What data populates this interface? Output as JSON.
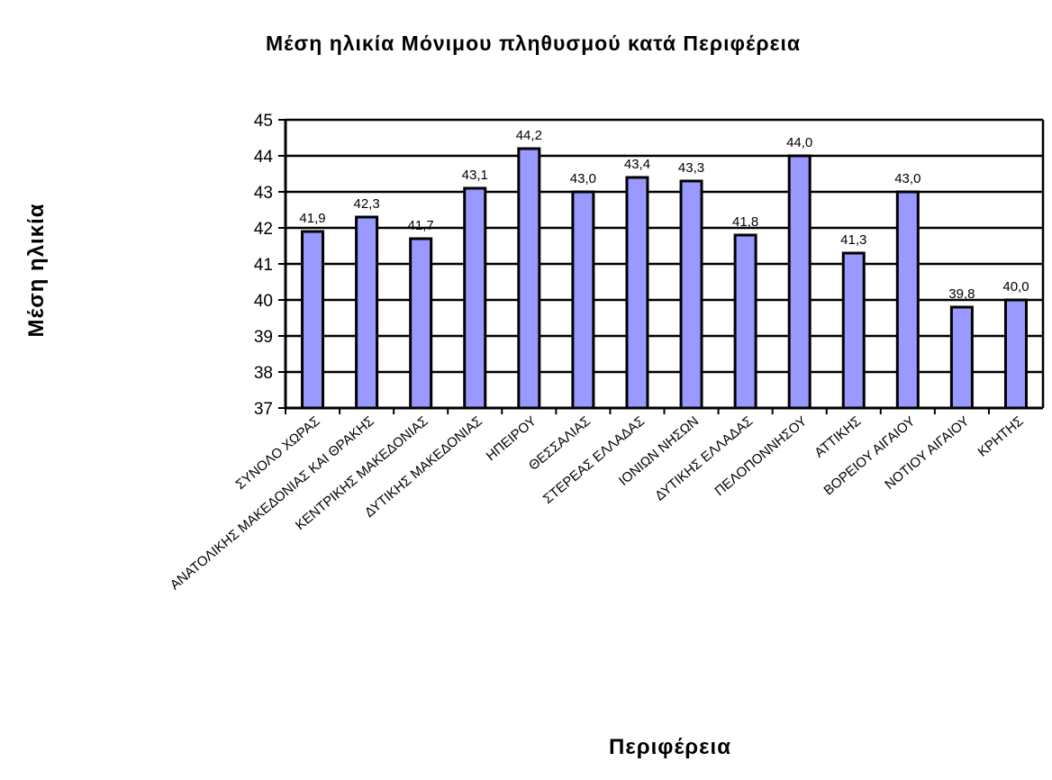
{
  "chart_data": {
    "type": "bar",
    "title": "Μέση ηλικία Μόνιμου  πληθυσμού κατά  Περιφέρεια",
    "xlabel": "Περιφέρεια",
    "ylabel": "Μέση ηλικία",
    "ylim": [
      37,
      45
    ],
    "yticks": [
      "37",
      "38",
      "39",
      "40",
      "41",
      "42",
      "43",
      "44",
      "45"
    ],
    "grid": true,
    "legend": "none",
    "bar_color": "#9999ff",
    "categories": [
      "ΣΥΝΟΛΟ ΧΩΡΑΣ",
      "ΑΝΑΤΟΛΙΚΗΣ ΜΑΚΕΔΟΝΙΑΣ ΚΑΙ ΘΡΑΚΗΣ",
      "ΚΕΝΤΡΙΚΗΣ ΜΑΚΕΔΟΝΙΑΣ",
      "ΔΥΤΙΚΗΣ ΜΑΚΕΔΟΝΙΑΣ",
      "ΗΠΕΙΡΟΥ",
      "ΘΕΣΣΑΛΙΑΣ",
      "ΣΤΕΡΕΑΣ ΕΛΛΑΔΑΣ",
      "ΙΟΝΙΩΝ ΝΗΣΩΝ",
      "ΔΥΤΙΚΗΣ ΕΛΛΑΔΑΣ",
      "ΠΕΛΟΠΟΝΝΗΣΟΥ",
      "ΑΤΤΙΚΗΣ",
      "ΒΟΡΕΙΟΥ ΑΙΓΑΙΟΥ",
      "ΝΟΤΙΟΥ ΑΙΓΑΙΟΥ",
      "ΚΡΗΤΗΣ"
    ],
    "values": [
      41.9,
      42.3,
      41.7,
      43.1,
      44.2,
      43.0,
      43.4,
      43.3,
      41.8,
      44.0,
      41.3,
      43.0,
      39.8,
      40.0
    ],
    "data_labels": [
      "41,9",
      "42,3",
      "41,7",
      "43,1",
      "44,2",
      "43,0",
      "43,4",
      "43,3",
      "41,8",
      "44,0",
      "41,3",
      "43,0",
      "39,8",
      "40,0"
    ]
  }
}
